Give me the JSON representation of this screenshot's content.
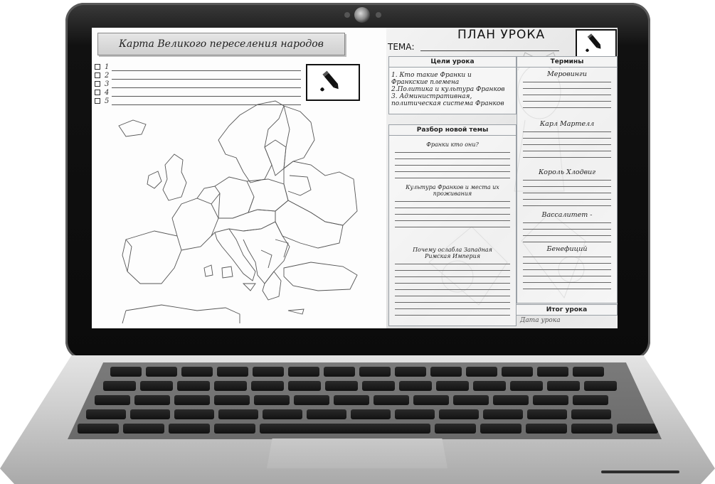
{
  "map_sheet": {
    "title": "Карта Великого переселения народов",
    "checklist": [
      "1",
      "2",
      "3",
      "4",
      "5"
    ],
    "pencil_icon": "pencil-icon"
  },
  "lesson_plan": {
    "title": "ПЛАН УРОКА",
    "theme_label": "ТЕМА:",
    "goals": {
      "header": "Цели урока",
      "items": [
        "1. Кто такие Франки и",
        "Франкские племена",
        "2.Политика и культура Франков",
        "3. Административная,",
        "политическая система Франков"
      ]
    },
    "analysis": {
      "header": "Разбор новой темы",
      "questions": [
        [
          "Франки кто они?"
        ],
        [
          "Культура Франков и места их",
          "проживания"
        ],
        [
          "Почему ослабла Западная",
          "Римская Империя"
        ]
      ]
    },
    "terms": {
      "header": "Термины",
      "items": [
        "Меровинги",
        "Карл Мартелл",
        "Король Хлодвиг",
        "Вассалитет -",
        "Бенефиций"
      ]
    },
    "result": {
      "header": "Итог урока",
      "date_label": "Дата урока"
    },
    "pencil_icon": "pencil-icon"
  }
}
